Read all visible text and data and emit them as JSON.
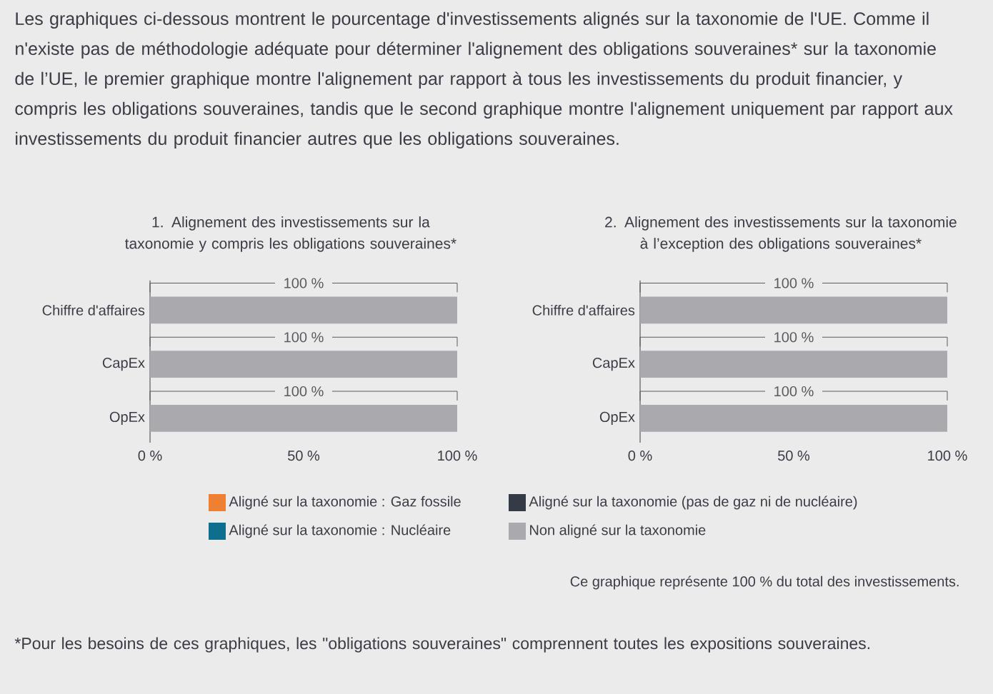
{
  "chart_data": [
    {
      "type": "bar",
      "orientation": "horizontal",
      "stacked": true,
      "title": "1. Alignement des investissements sur la taxonomie y compris les obligations souveraines*",
      "categories": [
        "Chiffre d'affaires",
        "CapEx",
        "OpEx"
      ],
      "series": [
        {
          "name": "Aligné sur la taxonomie : Gaz fossile",
          "color": "#f07f32",
          "values": [
            0,
            0,
            0
          ]
        },
        {
          "name": "Aligné sur la taxonomie : Nucléaire",
          "color": "#0d6e8e",
          "values": [
            0,
            0,
            0
          ]
        },
        {
          "name": "Aligné sur la taxonomie (pas de gaz ni de nucléaire)",
          "color": "#353a47",
          "values": [
            0,
            0,
            0
          ]
        },
        {
          "name": "Non aligné sur la taxonomie",
          "color": "#aaa9ae",
          "values": [
            100,
            100,
            100
          ]
        }
      ],
      "totals": [
        "100 %",
        "100 %",
        "100 %"
      ],
      "xlim": [
        0,
        100
      ],
      "xticks": [
        {
          "value": 0,
          "label": "0 %"
        },
        {
          "value": 50,
          "label": "50 %"
        },
        {
          "value": 100,
          "label": "100 %"
        }
      ],
      "legend": "bottom",
      "annotations": [
        "Les graphiques ci-dessous montrent le pourcentage d'investissements alignés sur la taxonomie de l'UE. Comme il n'existe pas de méthodologie adéquate pour déterminer l'alignement des obligations souveraines* sur la taxonomie de l’UE, le premier graphique montre l'alignement par rapport à tous les investissements du produit financier, y compris les obligations souveraines, tandis que le second graphique montre l'alignement uniquement par rapport aux investissements du produit financier autres que les obligations souveraines.",
        "Ce graphique représente 100 % du total des investissements.",
        "*Pour les besoins de ces graphiques, les \"obligations souveraines\" comprennent toutes les expositions souveraines."
      ]
    },
    {
      "type": "bar",
      "orientation": "horizontal",
      "stacked": true,
      "title": "2. Alignement des investissements sur la taxonomie à l’exception des obligations souveraines*",
      "categories": [
        "Chiffre d'affaires",
        "CapEx",
        "OpEx"
      ],
      "series": [
        {
          "color": "#f07f32",
          "values": [
            0,
            0,
            0
          ]
        },
        {
          "color": "#0d6e8e",
          "values": [
            0,
            0,
            0
          ]
        },
        {
          "color": "#353a47",
          "values": [
            0,
            0,
            0
          ]
        },
        {
          "color": "#aaa9ae",
          "values": [
            100,
            100,
            100
          ]
        }
      ],
      "totals": [
        "100 %",
        "100 %",
        "100 %"
      ],
      "xlim": [
        0,
        100
      ],
      "xticks": [
        {
          "value": 0,
          "label": "0 %"
        },
        {
          "value": 50,
          "label": "50 %"
        },
        {
          "value": 100,
          "label": "100 %"
        }
      ]
    }
  ]
}
